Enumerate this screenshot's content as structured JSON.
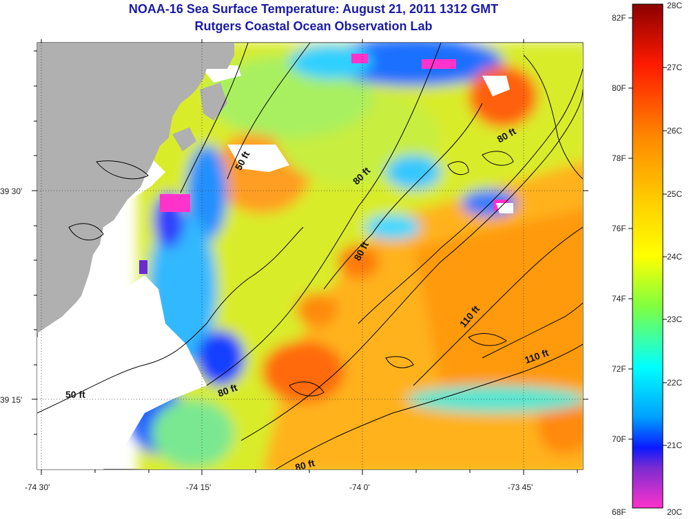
{
  "title": "NOAA-16 Sea Surface Temperature:  August 21, 2011 1312 GMT",
  "subtitle": "Rutgers Coastal Ocean Observation Lab",
  "axes": {
    "x_ticks": [
      "-74 30'",
      "-74 15'",
      "-74 0'",
      "-73 45'"
    ],
    "y_ticks": [
      "39 30'",
      "39 15'"
    ]
  },
  "contour_labels": [
    "50 ft",
    "50 ft",
    "80 ft",
    "80 ft",
    "80 ft",
    "80 ft",
    "80 ft",
    "110 ft",
    "110 ft"
  ],
  "colorbar": {
    "fahrenheit": [
      "82F",
      "80F",
      "78F",
      "76F",
      "74F",
      "72F",
      "70F",
      "68F"
    ],
    "celsius": [
      "28C",
      "27C",
      "26C",
      "25C",
      "24C",
      "23C",
      "22C",
      "21C",
      "20C"
    ],
    "colors": {
      "top": "#8b0000",
      "red": "#ff1a00",
      "orange": "#ff8c00",
      "yellow": "#ffff00",
      "cyan": "#00ffff",
      "blue": "#0a1aff",
      "bottom": "#ff33cc"
    }
  },
  "map": {
    "land_color": "#b0b0b0",
    "nodata_color": "#ffffff"
  }
}
